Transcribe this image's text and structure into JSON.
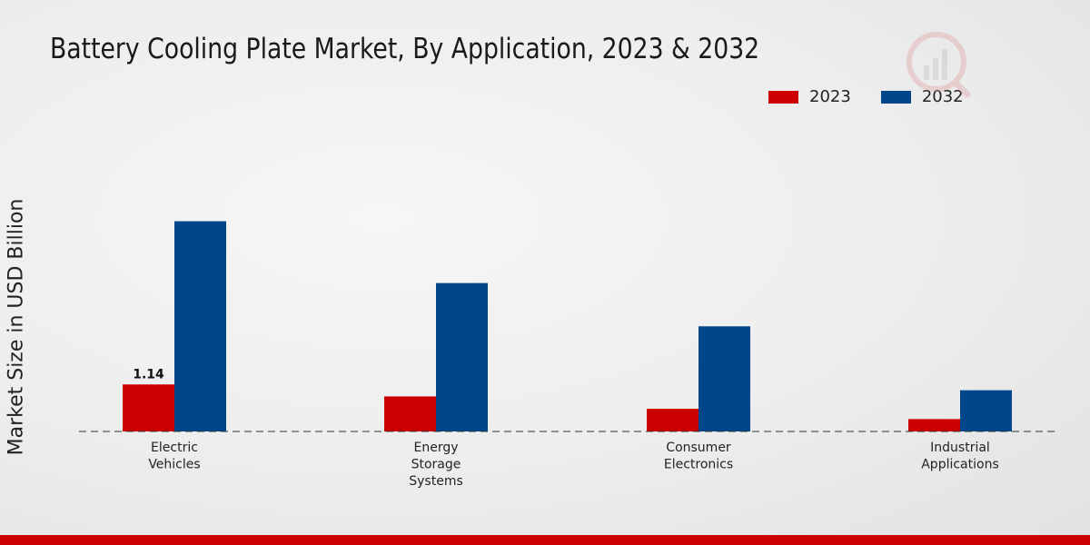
{
  "chart_data": {
    "type": "bar",
    "title": "Battery Cooling Plate Market, By Application, 2023 & 2032",
    "ylabel": "Market Size in USD Billion",
    "xlabel": "",
    "categories": [
      "Electric\nVehicles",
      "Energy\nStorage\nSystems",
      "Consumer\nElectronics",
      "Industrial\nApplications"
    ],
    "series": [
      {
        "name": "2023",
        "color": "#cc0000",
        "values": [
          1.14,
          0.85,
          0.55,
          0.3
        ]
      },
      {
        "name": "2032",
        "color": "#00468b",
        "values": [
          5.1,
          3.6,
          2.55,
          1.0
        ]
      }
    ],
    "ylim": [
      0,
      6.5
    ],
    "data_labels": [
      {
        "series": 0,
        "index": 0,
        "text": "1.14"
      }
    ],
    "grid": false,
    "legend_position": "top-right"
  },
  "colors": {
    "accent": "#cc0000",
    "secondary": "#00468b"
  },
  "icons": {
    "watermark": "logo-icon"
  }
}
